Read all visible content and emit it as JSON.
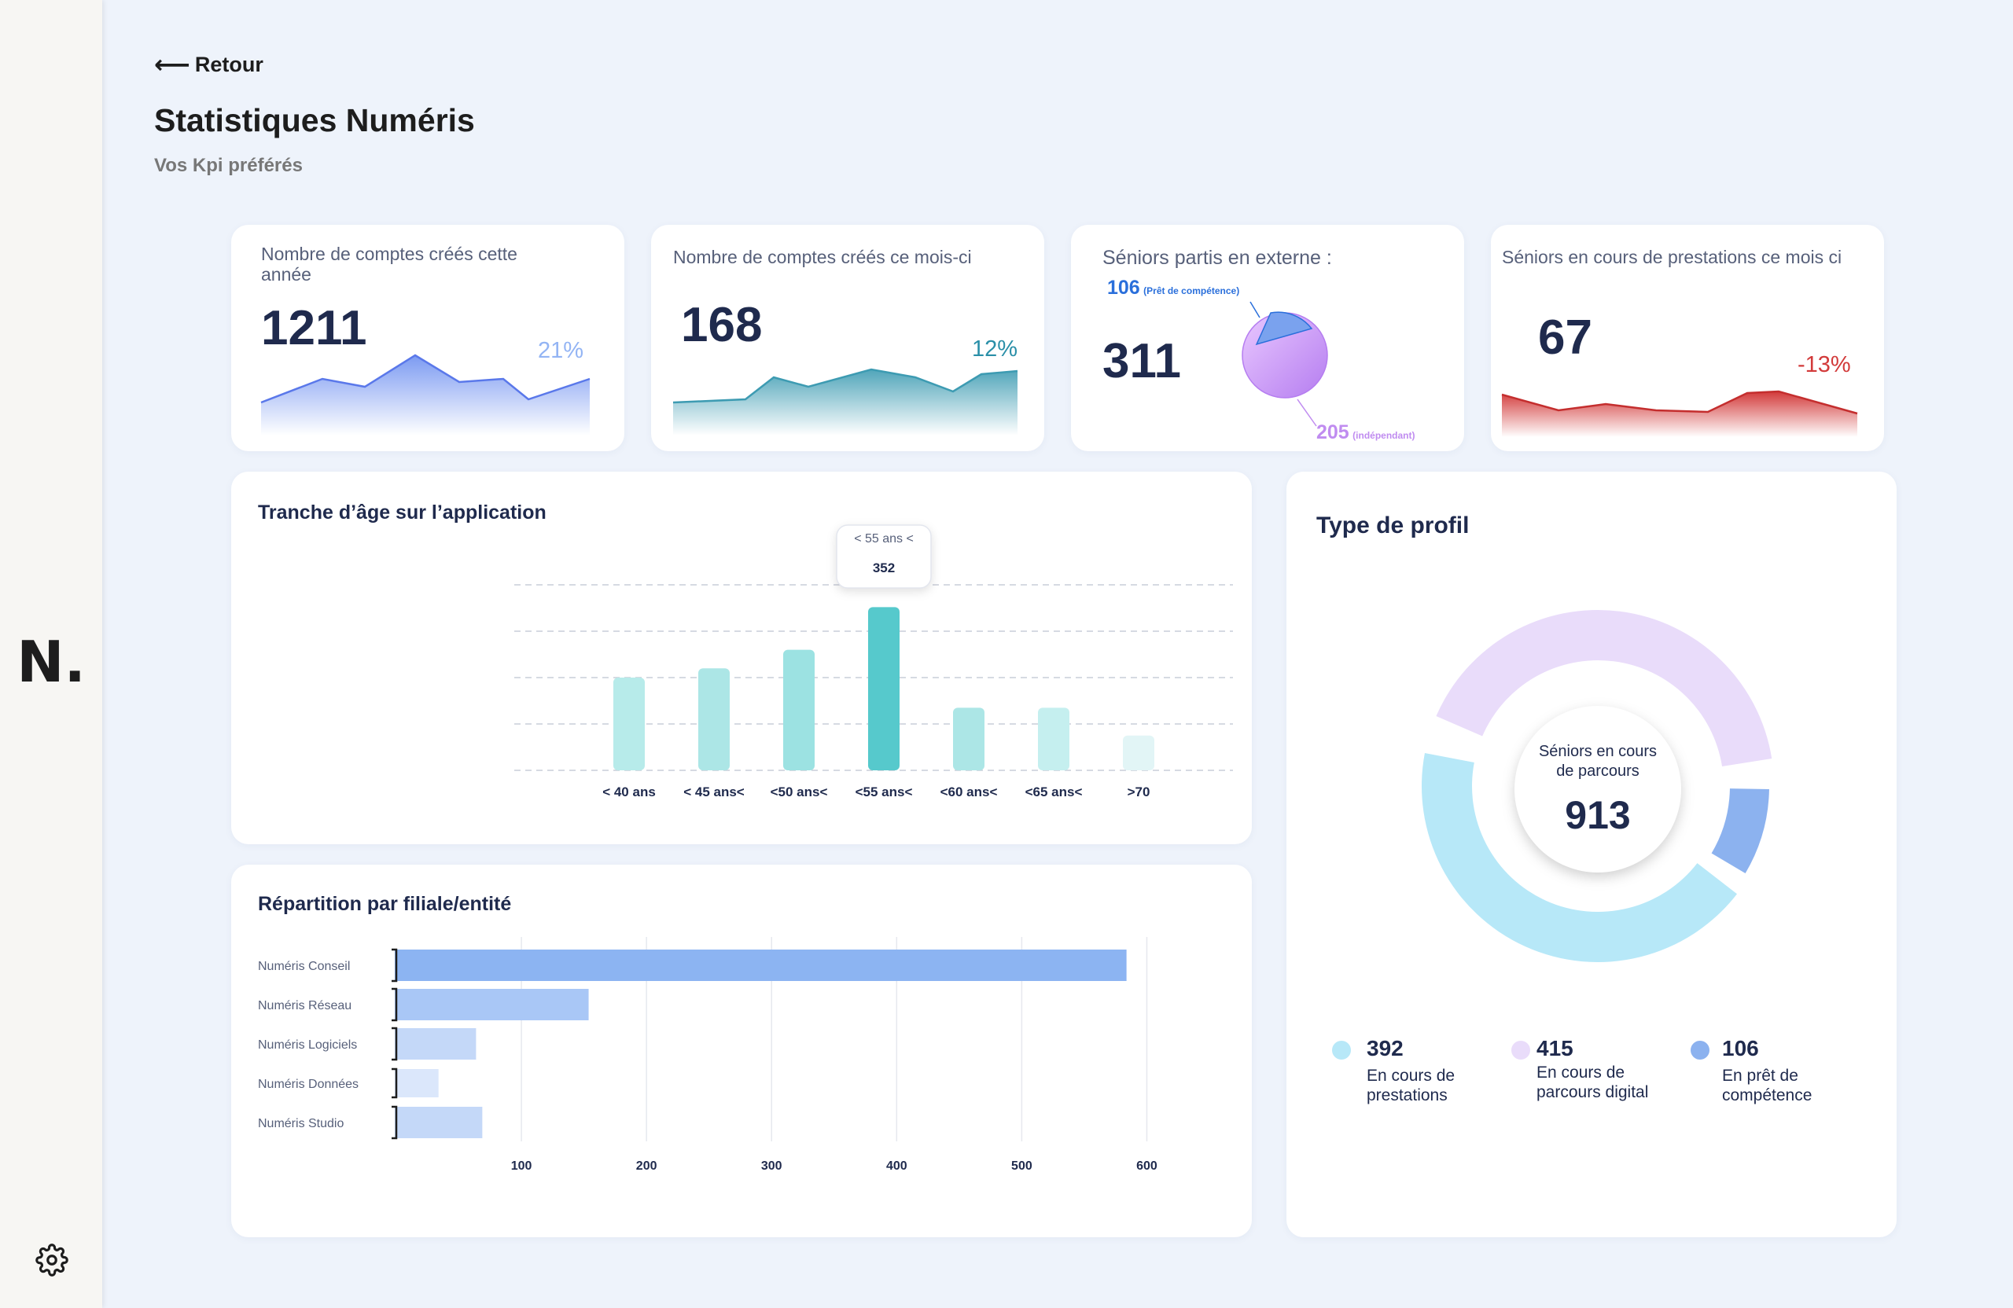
{
  "nav": {
    "back_label": "Retour",
    "logo": "N.",
    "settings_icon": "gear-icon"
  },
  "header": {
    "title": "Statistiques Numéris",
    "subtitle": "Vos Kpi préférés"
  },
  "kpis": {
    "accounts_year": {
      "label_line1": "Nombre de comptes créés cette",
      "label_line2": "année",
      "value": "1211",
      "change": "21%",
      "color": "#6d8ff0"
    },
    "accounts_month": {
      "label": "Nombre de comptes créés ce mois-ci",
      "value": "168",
      "change": "12%",
      "color": "#3d9bb2"
    },
    "seniors_external": {
      "label": "Séniors partis en externe :",
      "value": "311",
      "pret_value": "106",
      "pret_label": "(Prêt de compétence)",
      "indep_value": "205",
      "indep_label": "(indépendant)",
      "pie": [
        106,
        205
      ]
    },
    "seniors_prestations": {
      "label": "Séniors en cours de prestations ce mois ci",
      "value": "67",
      "change": "-13%",
      "color": "#d23a3a"
    }
  },
  "age_chart": {
    "title": "Tranche d’âge sur l’application",
    "tooltip": {
      "label": "< 55 ans <",
      "value": "352"
    },
    "chart_data": {
      "type": "bar",
      "categories": [
        "< 40 ans",
        "< 45 ans<",
        "<50 ans<",
        "<55 ans<",
        "<60 ans<",
        "<65 ans<",
        ">70"
      ],
      "values": [
        200,
        220,
        260,
        352,
        135,
        135,
        75
      ],
      "ylim": [
        0,
        400
      ],
      "grid": true,
      "highlight_index": 3
    }
  },
  "entity_chart": {
    "title": "Répartition par filiale/entité",
    "chart_data": {
      "type": "bar",
      "orientation": "horizontal",
      "categories": [
        "Numéris Conseil",
        "Numéris Réseau",
        "Numéris Logiciels",
        "Numéris Données",
        "Numéris Studio"
      ],
      "values": [
        585,
        155,
        65,
        35,
        70
      ],
      "x_ticks": [
        "100",
        "200",
        "300",
        "400",
        "500",
        "600"
      ],
      "xlim": [
        0,
        600
      ],
      "grid": true
    }
  },
  "profile": {
    "title": "Type de profil",
    "center_label_line1": "Séniors en cours",
    "center_label_line2": "de parcours",
    "center_value": "913",
    "chart_data": {
      "type": "pie",
      "values": [
        392,
        415,
        106
      ],
      "colors": [
        "#b7e8f8",
        "#e9dcfa",
        "#8cb2ef"
      ]
    },
    "legend": [
      {
        "value": "392",
        "line1": "En cours de",
        "line2": "prestations",
        "color": "#b7e8f8"
      },
      {
        "value": "415",
        "line1": "En cours de",
        "line2": "parcours digital",
        "color": "#e9dcfa"
      },
      {
        "value": "106",
        "line1": "En prêt de",
        "line2": "compétence",
        "color": "#8cb2ef"
      }
    ]
  }
}
